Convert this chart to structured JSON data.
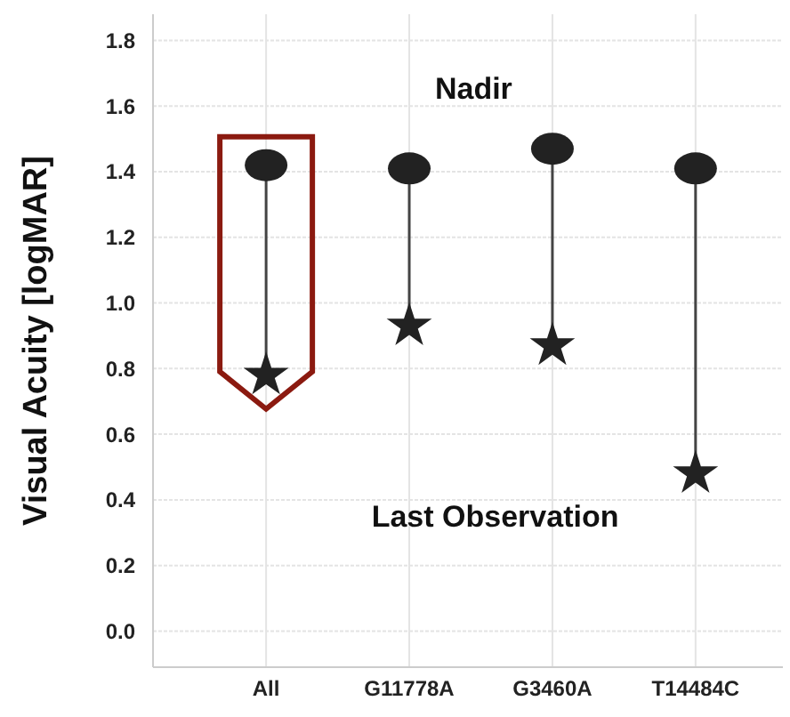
{
  "chart_data": {
    "type": "scatter",
    "ylabel": "Visual Acuity [logMAR]",
    "categories": [
      "All",
      "G11778A",
      "G3460A",
      "T14484C"
    ],
    "series": [
      {
        "name": "Nadir",
        "color": "#222222",
        "marker": "circle",
        "values": [
          1.42,
          1.41,
          1.47,
          1.41
        ]
      },
      {
        "name": "Last Observation",
        "color": "#222222",
        "marker": "star",
        "values": [
          0.78,
          0.93,
          0.87,
          0.48
        ]
      }
    ],
    "ylim": [
      -0.11,
      1.88
    ],
    "yticks": [
      {
        "value": 0,
        "label": "0.0"
      },
      {
        "value": 0.2,
        "label": "0.2"
      },
      {
        "value": 0.4,
        "label": "0.4"
      },
      {
        "value": 0.6,
        "label": "0.6"
      },
      {
        "value": 0.8,
        "label": "0.8"
      },
      {
        "value": 1,
        "label": "1.0"
      },
      {
        "value": 1.2,
        "label": "1.2"
      },
      {
        "value": 1.4,
        "label": "1.4"
      },
      {
        "value": 1.6,
        "label": "1.6"
      },
      {
        "value": 1.8,
        "label": "1.8"
      }
    ],
    "grid": true
  }
}
